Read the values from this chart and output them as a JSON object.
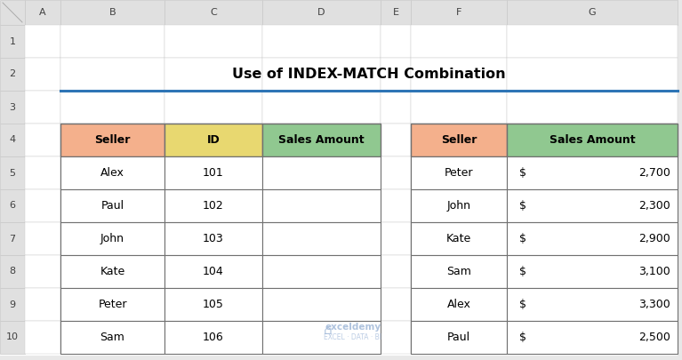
{
  "title": "Use of INDEX-MATCH Combination",
  "title_fontsize": 11.5,
  "title_fontweight": "bold",
  "bg_color": "#e8e8e8",
  "sheet_bg": "#ffffff",
  "table1_headers": [
    "Seller",
    "ID",
    "Sales Amount"
  ],
  "table1_header_colors": [
    "#f4b08c",
    "#e8d870",
    "#90c890"
  ],
  "table1_rows": [
    [
      "Alex",
      "101",
      ""
    ],
    [
      "Paul",
      "102",
      ""
    ],
    [
      "John",
      "103",
      ""
    ],
    [
      "Kate",
      "104",
      ""
    ],
    [
      "Peter",
      "105",
      ""
    ],
    [
      "Sam",
      "106",
      ""
    ]
  ],
  "table2_headers": [
    "Seller",
    "Sales Amount"
  ],
  "table2_header_colors": [
    "#f4b08c",
    "#90c890"
  ],
  "table2_rows": [
    [
      "Peter",
      "$",
      "2,700"
    ],
    [
      "John",
      "$",
      "2,300"
    ],
    [
      "Kate",
      "$",
      "2,900"
    ],
    [
      "Sam",
      "$",
      "3,100"
    ],
    [
      "Alex",
      "$",
      "3,300"
    ],
    [
      "Paul",
      "$",
      "2,500"
    ]
  ],
  "col_names": [
    "A",
    "B",
    "C",
    "D",
    "E",
    "F",
    "G"
  ],
  "grid_color": "#c8c8c8",
  "table_border_color": "#707070",
  "col_header_bg": "#e0e0e0",
  "row_header_bg": "#e0e0e0",
  "separator_line_color": "#2e75b6",
  "watermark_color": "#a0b8d8",
  "watermark_color2": "#b0c4e0"
}
